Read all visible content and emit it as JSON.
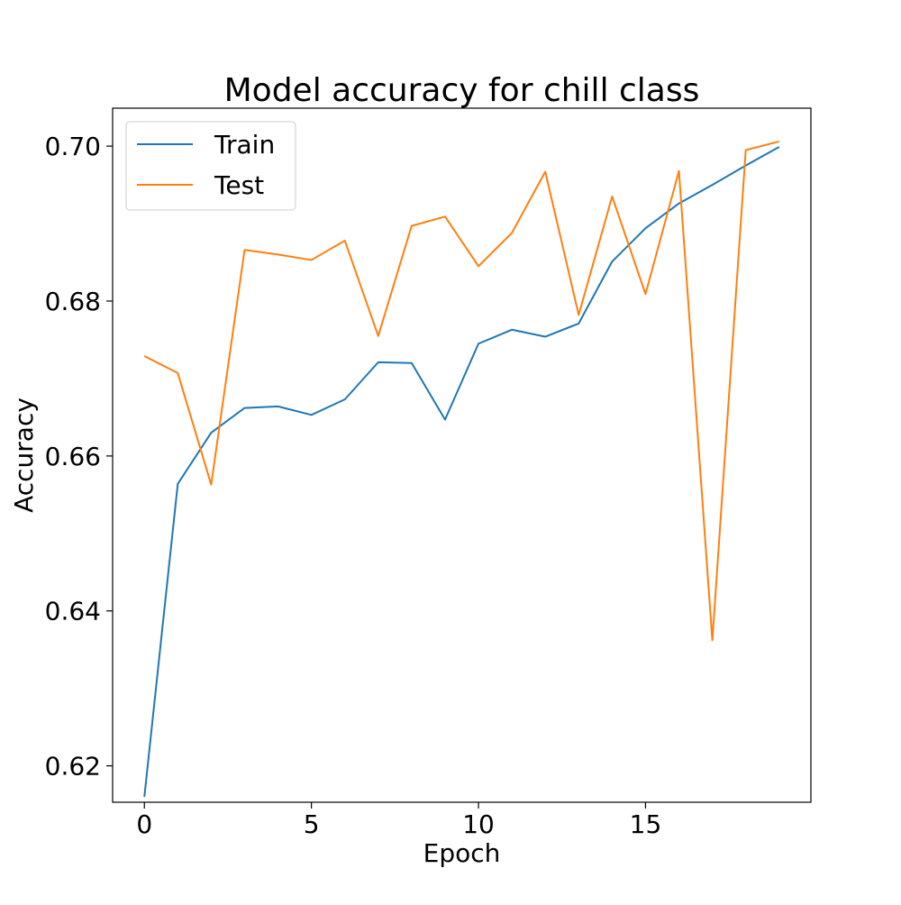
{
  "chart_data": {
    "type": "line",
    "title": "Model accuracy for chill class",
    "xlabel": "Epoch",
    "ylabel": "Accuracy",
    "x": [
      0,
      1,
      2,
      3,
      4,
      5,
      6,
      7,
      8,
      9,
      10,
      11,
      12,
      13,
      14,
      15,
      16,
      17,
      18,
      19
    ],
    "xlim": [
      -0.95,
      19.95
    ],
    "ylim": [
      0.6153,
      0.7049
    ],
    "xticks": [
      0,
      5,
      10,
      15
    ],
    "yticks": [
      0.62,
      0.64,
      0.66,
      0.68,
      0.7
    ],
    "xtick_labels": [
      "0",
      "5",
      "10",
      "15"
    ],
    "ytick_labels": [
      "0.62",
      "0.64",
      "0.66",
      "0.68",
      "0.70"
    ],
    "grid": false,
    "legend_position": "upper-left",
    "series": [
      {
        "name": "Train",
        "color": "#1f77b4",
        "values": [
          0.616,
          0.6564,
          0.663,
          0.6662,
          0.6664,
          0.6653,
          0.6673,
          0.6721,
          0.672,
          0.6647,
          0.6745,
          0.6763,
          0.6754,
          0.6771,
          0.6851,
          0.6894,
          0.6926,
          0.695,
          0.6975,
          0.6999
        ]
      },
      {
        "name": "Test",
        "color": "#ff7f0e",
        "values": [
          0.6729,
          0.6707,
          0.6563,
          0.6866,
          0.686,
          0.6853,
          0.6878,
          0.6755,
          0.6897,
          0.6909,
          0.6845,
          0.6888,
          0.6967,
          0.6782,
          0.6935,
          0.6809,
          0.6968,
          0.6362,
          0.6995,
          0.7006
        ]
      }
    ]
  }
}
